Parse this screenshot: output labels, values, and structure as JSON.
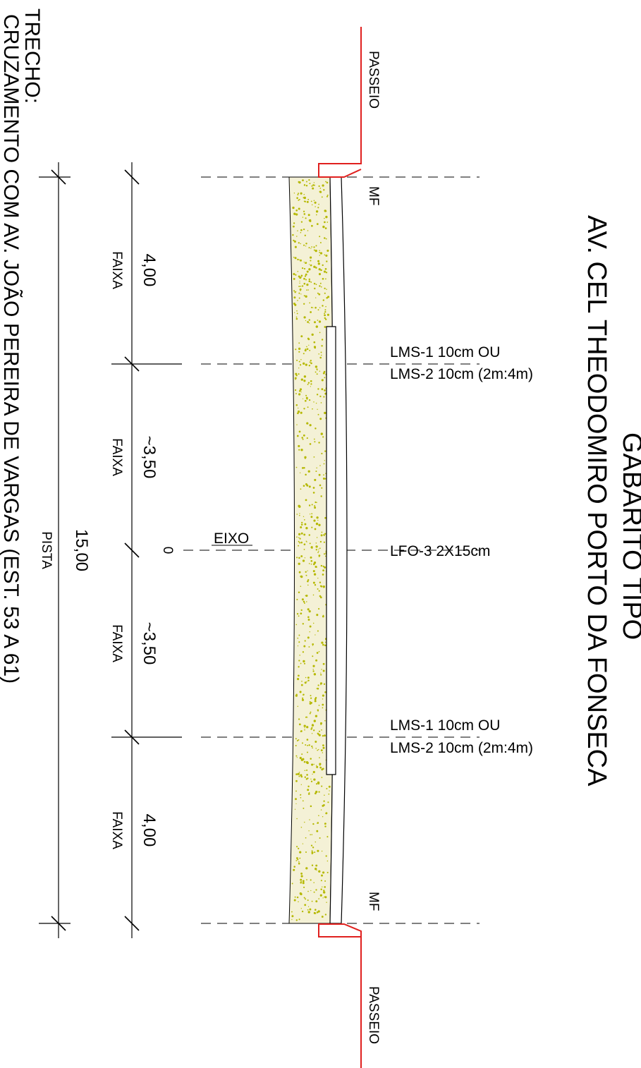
{
  "title": {
    "line1": "GABARITO TIPO",
    "line2": "AV. CEL THEODOMIRO PORTO DA FONSECA"
  },
  "trecho": {
    "label": "TRECHO:",
    "value": "CRUZAMENTO COM AV. JOÃO PEREIRA DE VARGAS (EST. 53 A 61)"
  },
  "labels": {
    "passeio_top": "PASSEIO",
    "passeio_bottom": "PASSEIO",
    "mf_top": "MF",
    "mf_bottom": "MF",
    "eixo": "EIXO",
    "eixo_zero": "0",
    "lms_top_1": "LMS-1 10cm OU",
    "lms_top_2": "LMS-2 10cm (2m:4m)",
    "lfo": "LFO-3 2X15cm",
    "lms_bottom_1": "LMS-1 10cm OU",
    "lms_bottom_2": "LMS-2 10cm (2m:4m)"
  },
  "dimensions": {
    "lanes": [
      {
        "value": "4,00",
        "label": "FAIXA"
      },
      {
        "value": "~3,50",
        "label": "FAIXA"
      },
      {
        "value": "~3,50",
        "label": "FAIXA"
      },
      {
        "value": "4,00",
        "label": "FAIXA"
      }
    ],
    "total": {
      "value": "15,00",
      "label": "PISTA"
    }
  },
  "colors": {
    "curb": "#e0201e",
    "pavement_fill": "#f4f1d6",
    "pavement_speckle": "#b5b800",
    "line": "#000000"
  }
}
